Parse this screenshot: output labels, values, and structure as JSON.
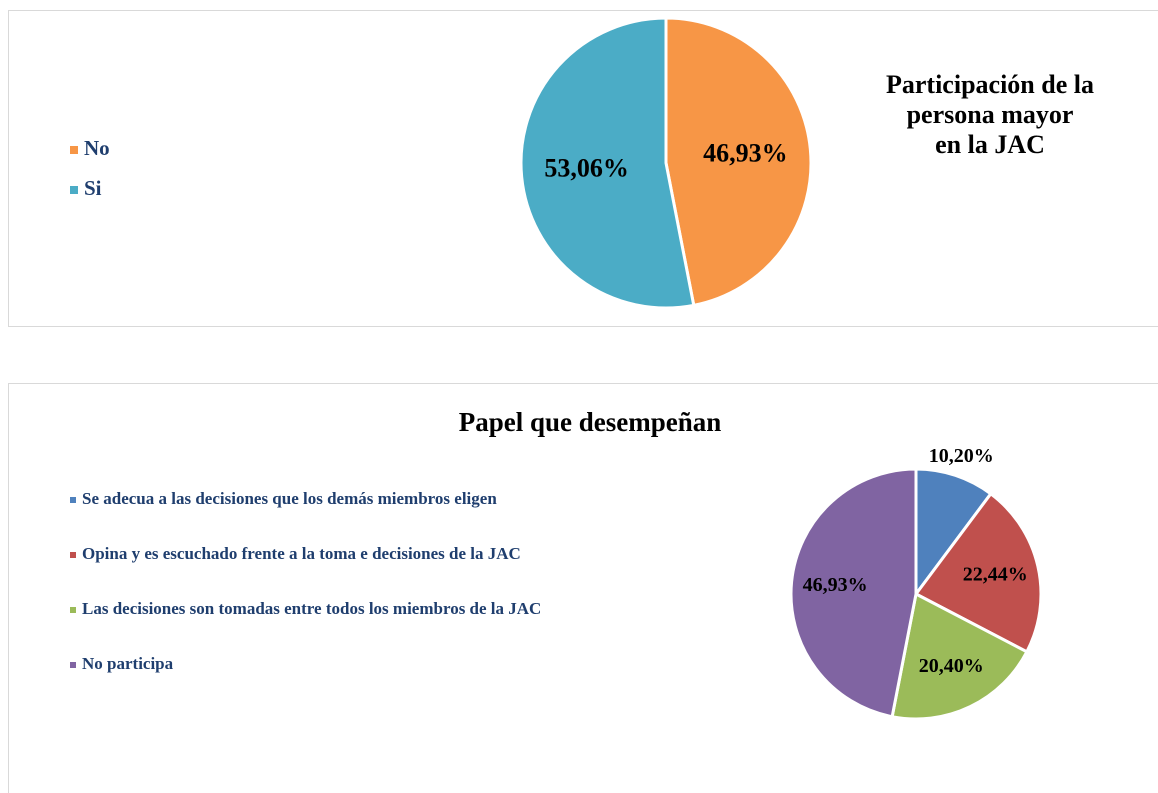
{
  "chart_data": [
    {
      "type": "pie",
      "title": [
        "Participación de la",
        "persona mayor",
        "en la JAC"
      ],
      "categories": [
        "No",
        "Si"
      ],
      "values": [
        46.93,
        53.06
      ],
      "value_labels": [
        "46,93%",
        "53,06%"
      ],
      "colors": [
        "#f79646",
        "#4bacc6"
      ],
      "legend": "left"
    },
    {
      "type": "pie",
      "title": "Papel que desempeñan",
      "categories": [
        "Se adecua a las decisiones que los demás miembros eligen",
        "Opina y es escuchado frente a la toma e decisiones de la JAC",
        "Las decisiones son tomadas entre todos los miembros de la JAC",
        "No participa"
      ],
      "values": [
        10.2,
        22.44,
        20.4,
        46.93
      ],
      "value_labels": [
        "10,20%",
        "22,44%",
        "20,40%",
        "46,93%"
      ],
      "colors": [
        "#4f81bd",
        "#c0504d",
        "#9bbb59",
        "#8064a2"
      ],
      "legend": "left"
    }
  ]
}
